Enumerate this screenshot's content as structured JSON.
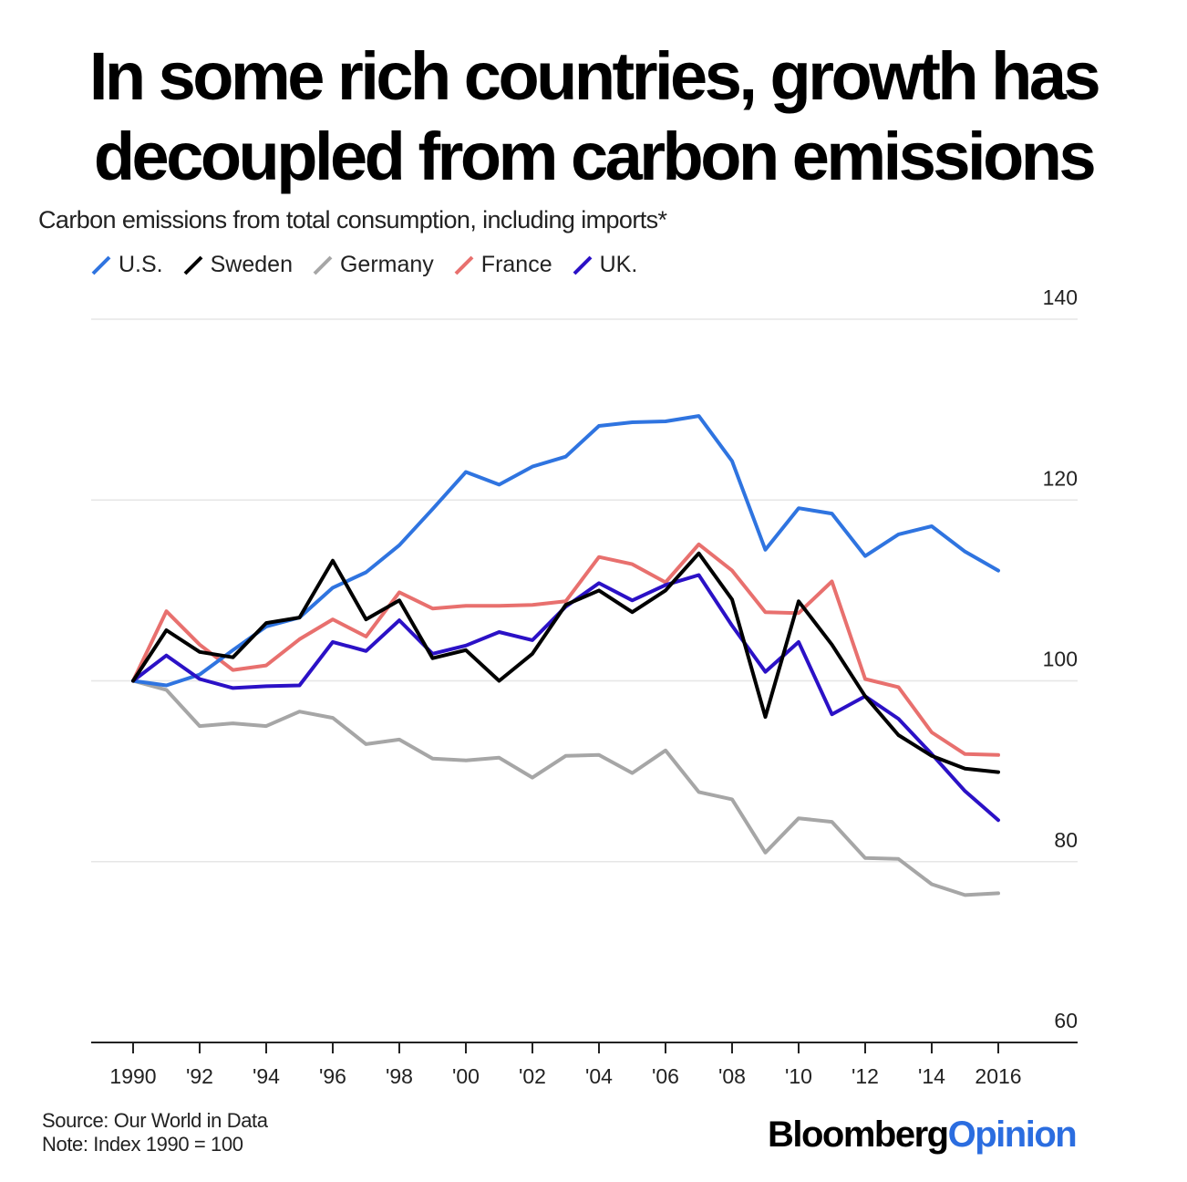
{
  "chart_data": {
    "type": "line",
    "title": "In some rich countries, growth has decoupled from carbon emissions",
    "subtitle": "Carbon emissions from total consumption, including imports*",
    "x": [
      1990,
      1991,
      1992,
      1993,
      1994,
      1995,
      1996,
      1997,
      1998,
      1999,
      2000,
      2001,
      2002,
      2003,
      2004,
      2005,
      2006,
      2007,
      2008,
      2009,
      2010,
      2011,
      2012,
      2013,
      2014,
      2015,
      2016
    ],
    "x_tick_labels": [
      "1990",
      "'92",
      "'94",
      "'96",
      "'98",
      "'00",
      "'02",
      "'04",
      "'06",
      "'08",
      "'10",
      "'12",
      "'14",
      "2016"
    ],
    "y_tick_labels": [
      "140",
      "120",
      "100",
      "80",
      "60"
    ],
    "ylim": [
      60,
      140
    ],
    "grid": true,
    "legend_position": "top-left",
    "series": [
      {
        "name": "U.S.",
        "color": "#2f74e0",
        "values": [
          100,
          99.5,
          100.7,
          103.4,
          106,
          107,
          110.3,
          112,
          115,
          119,
          123.1,
          121.7,
          123.7,
          124.8,
          128.2,
          128.6,
          128.7,
          129.3,
          124.3,
          114.5,
          119.1,
          118.5,
          113.8,
          116.2,
          117.1,
          114.3,
          112.2
        ]
      },
      {
        "name": "Sweden",
        "color": "#000000",
        "values": [
          100,
          105.6,
          103.2,
          102.6,
          106.4,
          107,
          113.3,
          106.8,
          108.9,
          102.5,
          103.4,
          100,
          103,
          108.4,
          110,
          107.6,
          110,
          114.1,
          109,
          96,
          108.8,
          104,
          98.3,
          94,
          91.7,
          90.3,
          89.9
        ]
      },
      {
        "name": "Germany",
        "color": "#a6a6a6",
        "values": [
          100,
          99,
          95,
          95.3,
          95,
          96.6,
          95.9,
          93,
          93.5,
          91.4,
          91.2,
          91.5,
          89.3,
          91.7,
          91.8,
          89.8,
          92.3,
          87.7,
          86.9,
          81,
          84.8,
          84.4,
          80.4,
          80.3,
          77.5,
          76.3,
          76.5
        ]
      },
      {
        "name": "France",
        "color": "#e8706e",
        "values": [
          100,
          107.7,
          104,
          101.2,
          101.7,
          104.6,
          106.8,
          104.9,
          109.8,
          108,
          108.3,
          108.3,
          108.4,
          108.8,
          113.7,
          112.9,
          110.9,
          115.1,
          112.2,
          107.6,
          107.5,
          111,
          100.2,
          99.3,
          94.3,
          91.9,
          91.8
        ]
      },
      {
        "name": "UK.",
        "color": "#2b11c6",
        "values": [
          100,
          102.8,
          100.2,
          99.2,
          99.4,
          99.5,
          104.3,
          103.3,
          106.7,
          103,
          103.9,
          105.4,
          104.5,
          108.2,
          110.8,
          108.9,
          110.6,
          111.7,
          106.1,
          101,
          104.3,
          96.3,
          98.3,
          95.8,
          91.9,
          87.8,
          84.6
        ]
      }
    ]
  },
  "legend": [
    {
      "label": "U.S.",
      "color": "#2f74e0"
    },
    {
      "label": "Sweden",
      "color": "#000000"
    },
    {
      "label": "Germany",
      "color": "#a6a6a6"
    },
    {
      "label": "France",
      "color": "#e8706e"
    },
    {
      "label": "UK.",
      "color": "#2b11c6"
    }
  ],
  "footer": {
    "source": "Source: Our World in Data",
    "note": "Note: Index 1990 = 100",
    "brand_part1": "Bloomberg",
    "brand_part2": "Opinion"
  }
}
